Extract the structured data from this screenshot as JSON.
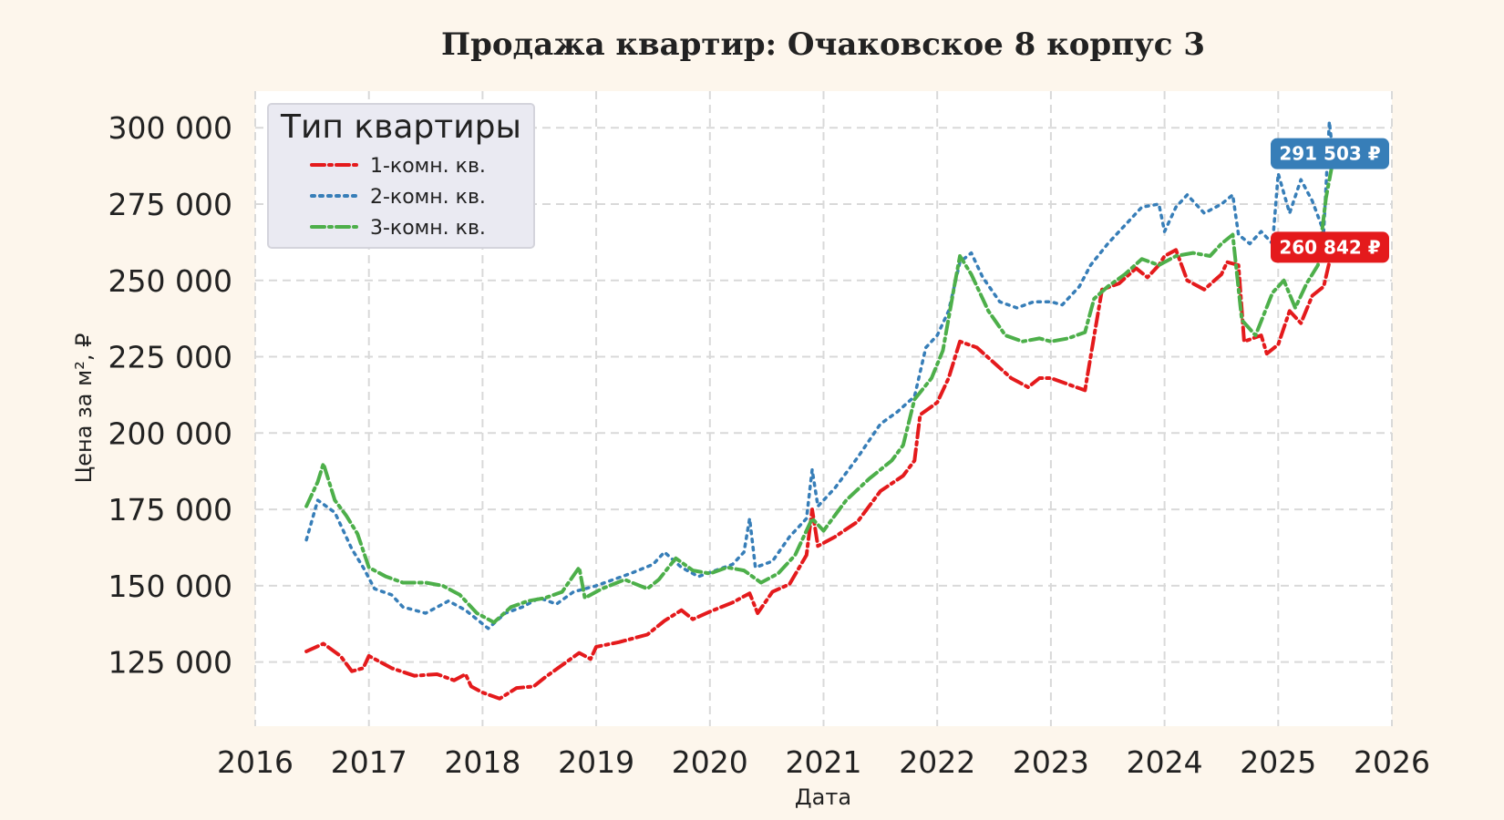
{
  "colors": {
    "background": "#fdf6ec",
    "plot_background": "#ffffff",
    "grid": "#d9d9d9",
    "series_1": "#e41a1c",
    "series_2": "#377eb8",
    "series_3": "#4daf4a"
  },
  "chart_data": {
    "type": "line",
    "title": "Продажа квартир: Очаковское 8 корпус 3",
    "xlabel": "Дата",
    "ylabel": "Цена за м², ₽",
    "xlim": [
      2016.0,
      2026.0
    ],
    "ylim": [
      104000,
      312000
    ],
    "x_ticks": [
      "2016",
      "2017",
      "2018",
      "2019",
      "2020",
      "2021",
      "2022",
      "2023",
      "2024",
      "2025",
      "2026"
    ],
    "y_ticks": [
      "125 000",
      "150 000",
      "175 000",
      "200 000",
      "225 000",
      "250 000",
      "275 000",
      "300 000"
    ],
    "grid": true,
    "legend": {
      "title": "Тип квартиры",
      "position": "top-left"
    },
    "series": [
      {
        "name": "1-комн. кв.",
        "style": "dash-dot",
        "last_value_label": "260 842 ₽",
        "points": [
          [
            2016.45,
            128500
          ],
          [
            2016.6,
            131000
          ],
          [
            2016.75,
            127000
          ],
          [
            2016.85,
            122000
          ],
          [
            2016.95,
            123000
          ],
          [
            2017.0,
            127000
          ],
          [
            2017.2,
            123000
          ],
          [
            2017.4,
            120500
          ],
          [
            2017.6,
            121000
          ],
          [
            2017.75,
            119000
          ],
          [
            2017.85,
            121000
          ],
          [
            2017.9,
            117000
          ],
          [
            2018.0,
            115000
          ],
          [
            2018.15,
            113000
          ],
          [
            2018.3,
            116500
          ],
          [
            2018.45,
            117000
          ],
          [
            2018.55,
            120000
          ],
          [
            2018.7,
            124000
          ],
          [
            2018.85,
            128000
          ],
          [
            2018.95,
            126000
          ],
          [
            2019.0,
            130000
          ],
          [
            2019.2,
            131500
          ],
          [
            2019.45,
            134000
          ],
          [
            2019.6,
            138500
          ],
          [
            2019.75,
            142000
          ],
          [
            2019.85,
            139000
          ],
          [
            2020.0,
            141500
          ],
          [
            2020.2,
            144500
          ],
          [
            2020.35,
            147500
          ],
          [
            2020.42,
            141000
          ],
          [
            2020.55,
            148000
          ],
          [
            2020.7,
            150500
          ],
          [
            2020.85,
            160000
          ],
          [
            2020.9,
            175000
          ],
          [
            2020.95,
            163000
          ],
          [
            2021.1,
            166000
          ],
          [
            2021.3,
            171000
          ],
          [
            2021.5,
            181000
          ],
          [
            2021.7,
            186000
          ],
          [
            2021.8,
            191000
          ],
          [
            2021.85,
            206000
          ],
          [
            2022.0,
            210000
          ],
          [
            2022.1,
            218000
          ],
          [
            2022.2,
            230000
          ],
          [
            2022.35,
            228000
          ],
          [
            2022.5,
            223000
          ],
          [
            2022.65,
            218000
          ],
          [
            2022.8,
            215000
          ],
          [
            2022.9,
            218000
          ],
          [
            2023.0,
            218000
          ],
          [
            2023.15,
            216000
          ],
          [
            2023.3,
            214000
          ],
          [
            2023.35,
            225000
          ],
          [
            2023.45,
            247000
          ],
          [
            2023.6,
            249000
          ],
          [
            2023.75,
            254000
          ],
          [
            2023.85,
            251000
          ],
          [
            2023.95,
            255000
          ],
          [
            2024.0,
            258000
          ],
          [
            2024.1,
            260000
          ],
          [
            2024.2,
            250000
          ],
          [
            2024.35,
            247000
          ],
          [
            2024.5,
            252000
          ],
          [
            2024.55,
            256000
          ],
          [
            2024.65,
            255000
          ],
          [
            2024.7,
            230000
          ],
          [
            2024.85,
            232000
          ],
          [
            2024.9,
            226000
          ],
          [
            2025.0,
            229000
          ],
          [
            2025.1,
            240000
          ],
          [
            2025.2,
            236000
          ],
          [
            2025.3,
            245000
          ],
          [
            2025.4,
            248000
          ],
          [
            2025.48,
            260842
          ]
        ]
      },
      {
        "name": "2-комн. кв.",
        "style": "dotted",
        "last_value_label": "291 503 ₽",
        "points": [
          [
            2016.45,
            165000
          ],
          [
            2016.55,
            178000
          ],
          [
            2016.7,
            174000
          ],
          [
            2016.85,
            162000
          ],
          [
            2016.95,
            156000
          ],
          [
            2017.05,
            149000
          ],
          [
            2017.2,
            147000
          ],
          [
            2017.3,
            143000
          ],
          [
            2017.5,
            141000
          ],
          [
            2017.7,
            145000
          ],
          [
            2017.85,
            142000
          ],
          [
            2017.95,
            139000
          ],
          [
            2018.05,
            136000
          ],
          [
            2018.2,
            141000
          ],
          [
            2018.35,
            143000
          ],
          [
            2018.5,
            146000
          ],
          [
            2018.65,
            144000
          ],
          [
            2018.8,
            148000
          ],
          [
            2019.0,
            150000
          ],
          [
            2019.15,
            152000
          ],
          [
            2019.3,
            154000
          ],
          [
            2019.5,
            157000
          ],
          [
            2019.6,
            161000
          ],
          [
            2019.75,
            156000
          ],
          [
            2019.9,
            153000
          ],
          [
            2020.05,
            155000
          ],
          [
            2020.2,
            157000
          ],
          [
            2020.3,
            161000
          ],
          [
            2020.35,
            172000
          ],
          [
            2020.4,
            156000
          ],
          [
            2020.55,
            158000
          ],
          [
            2020.7,
            166000
          ],
          [
            2020.85,
            172000
          ],
          [
            2020.9,
            188000
          ],
          [
            2020.95,
            176000
          ],
          [
            2021.1,
            182000
          ],
          [
            2021.3,
            192000
          ],
          [
            2021.5,
            203000
          ],
          [
            2021.65,
            207000
          ],
          [
            2021.8,
            212000
          ],
          [
            2021.9,
            228000
          ],
          [
            2022.0,
            232000
          ],
          [
            2022.1,
            240000
          ],
          [
            2022.2,
            256000
          ],
          [
            2022.3,
            259000
          ],
          [
            2022.4,
            251000
          ],
          [
            2022.55,
            243000
          ],
          [
            2022.7,
            241000
          ],
          [
            2022.85,
            243000
          ],
          [
            2023.0,
            243000
          ],
          [
            2023.1,
            242000
          ],
          [
            2023.25,
            248000
          ],
          [
            2023.35,
            255000
          ],
          [
            2023.5,
            262000
          ],
          [
            2023.65,
            268000
          ],
          [
            2023.8,
            274000
          ],
          [
            2023.95,
            275000
          ],
          [
            2024.0,
            266000
          ],
          [
            2024.1,
            274000
          ],
          [
            2024.2,
            278000
          ],
          [
            2024.35,
            272000
          ],
          [
            2024.5,
            275000
          ],
          [
            2024.6,
            278000
          ],
          [
            2024.65,
            265000
          ],
          [
            2024.75,
            262000
          ],
          [
            2024.85,
            266000
          ],
          [
            2024.95,
            262000
          ],
          [
            2025.0,
            285000
          ],
          [
            2025.1,
            272000
          ],
          [
            2025.2,
            283000
          ],
          [
            2025.3,
            276000
          ],
          [
            2025.4,
            266000
          ],
          [
            2025.45,
            302000
          ],
          [
            2025.48,
            291503
          ]
        ]
      },
      {
        "name": "3-комн. кв.",
        "style": "dash-dot",
        "last_value_label": "",
        "points": [
          [
            2016.45,
            176000
          ],
          [
            2016.55,
            184000
          ],
          [
            2016.6,
            190000
          ],
          [
            2016.7,
            178000
          ],
          [
            2016.8,
            173000
          ],
          [
            2016.9,
            167000
          ],
          [
            2017.0,
            156000
          ],
          [
            2017.15,
            153000
          ],
          [
            2017.3,
            151000
          ],
          [
            2017.5,
            151000
          ],
          [
            2017.65,
            150000
          ],
          [
            2017.8,
            147000
          ],
          [
            2017.95,
            141000
          ],
          [
            2018.1,
            138000
          ],
          [
            2018.25,
            143000
          ],
          [
            2018.4,
            145000
          ],
          [
            2018.55,
            146000
          ],
          [
            2018.7,
            148000
          ],
          [
            2018.85,
            156000
          ],
          [
            2018.9,
            146000
          ],
          [
            2019.05,
            149000
          ],
          [
            2019.25,
            152000
          ],
          [
            2019.45,
            149000
          ],
          [
            2019.55,
            152000
          ],
          [
            2019.7,
            159000
          ],
          [
            2019.85,
            155000
          ],
          [
            2020.0,
            154000
          ],
          [
            2020.15,
            156000
          ],
          [
            2020.3,
            155000
          ],
          [
            2020.45,
            151000
          ],
          [
            2020.6,
            154000
          ],
          [
            2020.75,
            160000
          ],
          [
            2020.9,
            172000
          ],
          [
            2021.0,
            168000
          ],
          [
            2021.2,
            178000
          ],
          [
            2021.4,
            185000
          ],
          [
            2021.6,
            191000
          ],
          [
            2021.7,
            196000
          ],
          [
            2021.8,
            211000
          ],
          [
            2021.95,
            218000
          ],
          [
            2022.05,
            227000
          ],
          [
            2022.15,
            248000
          ],
          [
            2022.2,
            258000
          ],
          [
            2022.3,
            252000
          ],
          [
            2022.45,
            240000
          ],
          [
            2022.6,
            232000
          ],
          [
            2022.75,
            230000
          ],
          [
            2022.9,
            231000
          ],
          [
            2023.0,
            230000
          ],
          [
            2023.15,
            231000
          ],
          [
            2023.3,
            233000
          ],
          [
            2023.38,
            244000
          ],
          [
            2023.5,
            248000
          ],
          [
            2023.65,
            252000
          ],
          [
            2023.8,
            257000
          ],
          [
            2023.95,
            255000
          ],
          [
            2024.1,
            258000
          ],
          [
            2024.25,
            259000
          ],
          [
            2024.4,
            258000
          ],
          [
            2024.5,
            262000
          ],
          [
            2024.6,
            265000
          ],
          [
            2024.68,
            237000
          ],
          [
            2024.8,
            232000
          ],
          [
            2024.95,
            246000
          ],
          [
            2025.05,
            250000
          ],
          [
            2025.15,
            241000
          ],
          [
            2025.25,
            249000
          ],
          [
            2025.35,
            255000
          ],
          [
            2025.42,
            277000
          ],
          [
            2025.48,
            289000
          ]
        ]
      }
    ]
  }
}
